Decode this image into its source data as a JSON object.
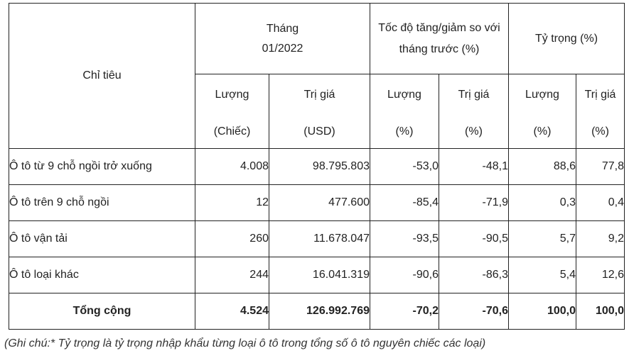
{
  "table": {
    "header": {
      "indicator": "Chỉ tiêu",
      "month_line1": "Tháng",
      "month_line2": "01/2022",
      "change_line1": "Tốc độ tăng/giảm so với",
      "change_line2": "tháng trước (%)",
      "share": "Tỷ trọng (%)",
      "sub": [
        {
          "l1": "Lượng",
          "l2": "(Chiếc)"
        },
        {
          "l1": "Trị giá",
          "l2": "(USD)"
        },
        {
          "l1": "Lượng",
          "l2": "(%)"
        },
        {
          "l1": "Trị giá",
          "l2": "(%)"
        },
        {
          "l1": "Lượng",
          "l2": "(%)"
        },
        {
          "l1": "Trị giá",
          "l2": "(%)"
        }
      ]
    },
    "rows": [
      {
        "name": "Ô tô từ 9 chỗ ngồi trở xuống",
        "qty": "4.008",
        "value": "98.795.803",
        "qty_change": "-53,0",
        "value_change": "-48,1",
        "qty_share": "88,6",
        "value_share": "77,8"
      },
      {
        "name": "Ô tô trên 9 chỗ ngồi",
        "qty": "12",
        "value": "477.600",
        "qty_change": "-85,4",
        "value_change": "-71,9",
        "qty_share": "0,3",
        "value_share": "0,4"
      },
      {
        "name": "Ô tô vận tải",
        "qty": "260",
        "value": "11.678.047",
        "qty_change": "-93,5",
        "value_change": "-90,5",
        "qty_share": "5,7",
        "value_share": "9,2"
      },
      {
        "name": "Ô tô loại khác",
        "qty": "244",
        "value": "16.041.319",
        "qty_change": "-90,6",
        "value_change": "-86,3",
        "qty_share": "5,4",
        "value_share": "12,6"
      }
    ],
    "total": {
      "name": "Tổng cộng",
      "qty": "4.524",
      "value": "126.992.769",
      "qty_change": "-70,2",
      "value_change": "-70,6",
      "qty_share": "100,0",
      "value_share": "100,0"
    }
  },
  "note": "(Ghi chú:* Tỷ trọng là tỷ trọng nhập khẩu từng loại ô tô trong tổng số ô tô nguyên chiếc các loại)"
}
